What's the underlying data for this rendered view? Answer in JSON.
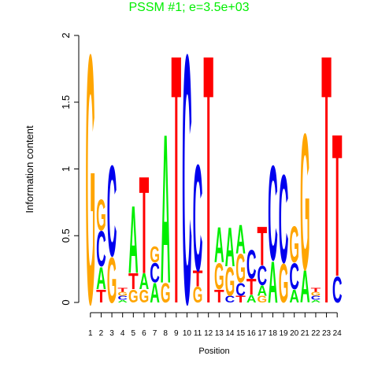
{
  "chart_data": {
    "type": "logo",
    "title": "PSSM #1; e=3.5e+03",
    "title_color": "#00ee00",
    "xlabel": "Position",
    "ylabel": "Information content",
    "x": [
      1,
      2,
      3,
      4,
      5,
      6,
      7,
      8,
      9,
      10,
      11,
      12,
      13,
      14,
      15,
      16,
      17,
      18,
      19,
      20,
      21,
      22,
      23,
      24
    ],
    "xlim": [
      0.5,
      24.5
    ],
    "ylim": [
      0,
      2
    ],
    "yticks": [
      0,
      0.5,
      1,
      1.5,
      2
    ],
    "colors": {
      "A": "#00ee00",
      "C": "#0000ee",
      "G": "#ffa500",
      "T": "#ff0000"
    },
    "stacks": [
      [
        {
          "letter": "G",
          "value": 1.92
        }
      ],
      [
        {
          "letter": "T",
          "value": 0.1
        },
        {
          "letter": "A",
          "value": 0.17
        },
        {
          "letter": "C",
          "value": 0.27
        },
        {
          "letter": "G",
          "value": 0.24
        }
      ],
      [
        {
          "letter": "G",
          "value": 0.35
        },
        {
          "letter": "C",
          "value": 0.7
        }
      ],
      [
        {
          "letter": "A",
          "value": 0.02
        },
        {
          "letter": "C",
          "value": 0.03
        },
        {
          "letter": "G",
          "value": 0.03
        },
        {
          "letter": "T",
          "value": 0.03
        }
      ],
      [
        {
          "letter": "G",
          "value": 0.1
        },
        {
          "letter": "T",
          "value": 0.12
        },
        {
          "letter": "A",
          "value": 0.52
        }
      ],
      [
        {
          "letter": "G",
          "value": 0.1
        },
        {
          "letter": "A",
          "value": 0.12
        },
        {
          "letter": "T",
          "value": 0.75
        }
      ],
      [
        {
          "letter": "A",
          "value": 0.15
        },
        {
          "letter": "C",
          "value": 0.15
        },
        {
          "letter": "G",
          "value": 0.12
        }
      ],
      [
        {
          "letter": "G",
          "value": 0.15
        },
        {
          "letter": "A",
          "value": 1.15
        }
      ],
      [
        {
          "letter": "T",
          "value": 1.92
        }
      ],
      [
        {
          "letter": "C",
          "value": 1.92
        }
      ],
      [
        {
          "letter": "G",
          "value": 0.12
        },
        {
          "letter": "T",
          "value": 0.12
        },
        {
          "letter": "C",
          "value": 0.82
        }
      ],
      [
        {
          "letter": "T",
          "value": 1.92
        }
      ],
      [
        {
          "letter": "T",
          "value": 0.1
        },
        {
          "letter": "G",
          "value": 0.2
        },
        {
          "letter": "A",
          "value": 0.27
        }
      ],
      [
        {
          "letter": "C",
          "value": 0.05
        },
        {
          "letter": "G",
          "value": 0.22
        },
        {
          "letter": "A",
          "value": 0.3
        }
      ],
      [
        {
          "letter": "T",
          "value": 0.05
        },
        {
          "letter": "C",
          "value": 0.1
        },
        {
          "letter": "G",
          "value": 0.22
        },
        {
          "letter": "A",
          "value": 0.22
        }
      ],
      [
        {
          "letter": "A",
          "value": 0.06
        },
        {
          "letter": "T",
          "value": 0.12
        },
        {
          "letter": "C",
          "value": 0.22
        }
      ],
      [
        {
          "letter": "G",
          "value": 0.05
        },
        {
          "letter": "A",
          "value": 0.08
        },
        {
          "letter": "C",
          "value": 0.15
        },
        {
          "letter": "T",
          "value": 0.3
        }
      ],
      [
        {
          "letter": "A",
          "value": 0.32
        },
        {
          "letter": "C",
          "value": 0.73
        }
      ],
      [
        {
          "letter": "G",
          "value": 0.3
        },
        {
          "letter": "C",
          "value": 0.68
        }
      ],
      [
        {
          "letter": "A",
          "value": 0.1
        },
        {
          "letter": "C",
          "value": 0.2
        },
        {
          "letter": "G",
          "value": 0.28
        }
      ],
      [
        {
          "letter": "A",
          "value": 0.25
        },
        {
          "letter": "G",
          "value": 1.05
        }
      ],
      [
        {
          "letter": "A",
          "value": 0.02
        },
        {
          "letter": "C",
          "value": 0.03
        },
        {
          "letter": "G",
          "value": 0.03
        },
        {
          "letter": "T",
          "value": 0.03
        }
      ],
      [
        {
          "letter": "T",
          "value": 1.92
        }
      ],
      [
        {
          "letter": "C",
          "value": 0.2
        },
        {
          "letter": "T",
          "value": 1.1
        }
      ]
    ]
  }
}
